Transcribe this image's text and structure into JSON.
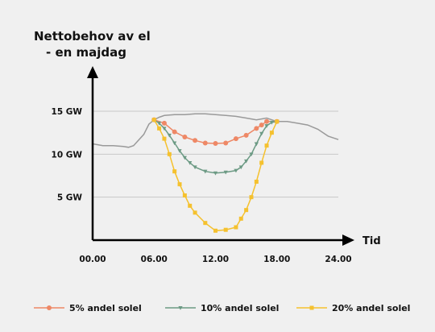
{
  "chart_data": {
    "type": "line",
    "title_lines": [
      "Nettobehov av el",
      "- en majdag"
    ],
    "xlabel": "Tid",
    "ylabel": "",
    "xlim": [
      0,
      24
    ],
    "ylim": [
      0,
      15
    ],
    "x_ticks": [
      0,
      6,
      12,
      18,
      24
    ],
    "x_tick_labels": [
      "00.00",
      "06.00",
      "12.00",
      "18.00",
      "24.00"
    ],
    "y_ticks": [
      5,
      10,
      15
    ],
    "y_tick_labels": [
      "5 GW",
      "10 GW",
      "15 GW"
    ],
    "grid": true,
    "legend_position": "bottom",
    "colors": {
      "base": "#9a9a9a",
      "solar5": "#ee8866",
      "solar10": "#6c9a84",
      "solar20": "#f5c12e",
      "axis": "#000000",
      "grid": "#c8c8c8"
    },
    "base_series": {
      "x": [
        0,
        0.5,
        1,
        2,
        3,
        3.5,
        4,
        5,
        5.5,
        6,
        6.5,
        7,
        8,
        9,
        10,
        11,
        12,
        13,
        14,
        15,
        16,
        17,
        17.5,
        18,
        19,
        20,
        21,
        22,
        23,
        24
      ],
      "y": [
        11.2,
        11.1,
        11.0,
        11.0,
        10.9,
        10.8,
        11.0,
        12.3,
        13.5,
        14.0,
        14.3,
        14.5,
        14.6,
        14.6,
        14.7,
        14.7,
        14.6,
        14.5,
        14.4,
        14.2,
        14.0,
        14.2,
        14.0,
        13.8,
        13.8,
        13.6,
        13.4,
        12.9,
        12.1,
        11.7
      ]
    },
    "series": [
      {
        "name": "5% andel solel",
        "marker": "circle",
        "x": [
          6,
          7,
          8,
          9,
          10,
          11,
          12,
          13,
          14,
          15,
          16,
          16.5,
          17,
          18
        ],
        "y": [
          14.0,
          13.6,
          12.6,
          12.0,
          11.6,
          11.3,
          11.25,
          11.3,
          11.8,
          12.2,
          13.0,
          13.4,
          13.8,
          13.8
        ]
      },
      {
        "name": "10% andel solel",
        "marker": "triangle",
        "x": [
          6,
          6.5,
          7,
          7.5,
          8,
          8.5,
          9,
          9.5,
          10,
          11,
          12,
          13,
          14,
          14.5,
          15,
          15.5,
          16,
          16.5,
          17,
          17.5,
          18
        ],
        "y": [
          14.0,
          13.6,
          13.0,
          12.2,
          11.3,
          10.4,
          9.6,
          9.0,
          8.5,
          8.0,
          7.8,
          7.9,
          8.1,
          8.5,
          9.2,
          10.0,
          11.2,
          12.4,
          13.3,
          13.7,
          13.8
        ]
      },
      {
        "name": "20% andel solel",
        "marker": "square",
        "x": [
          6,
          6.5,
          7,
          7.5,
          8,
          8.5,
          9,
          9.5,
          10,
          11,
          12,
          13,
          14,
          14.5,
          15,
          15.5,
          16,
          16.5,
          17,
          17.5,
          18
        ],
        "y": [
          14.0,
          13.0,
          11.8,
          10.0,
          8.0,
          6.5,
          5.2,
          4.0,
          3.2,
          2.0,
          1.1,
          1.2,
          1.5,
          2.5,
          3.5,
          5.0,
          6.8,
          9.0,
          11.0,
          12.5,
          13.8
        ]
      }
    ]
  }
}
